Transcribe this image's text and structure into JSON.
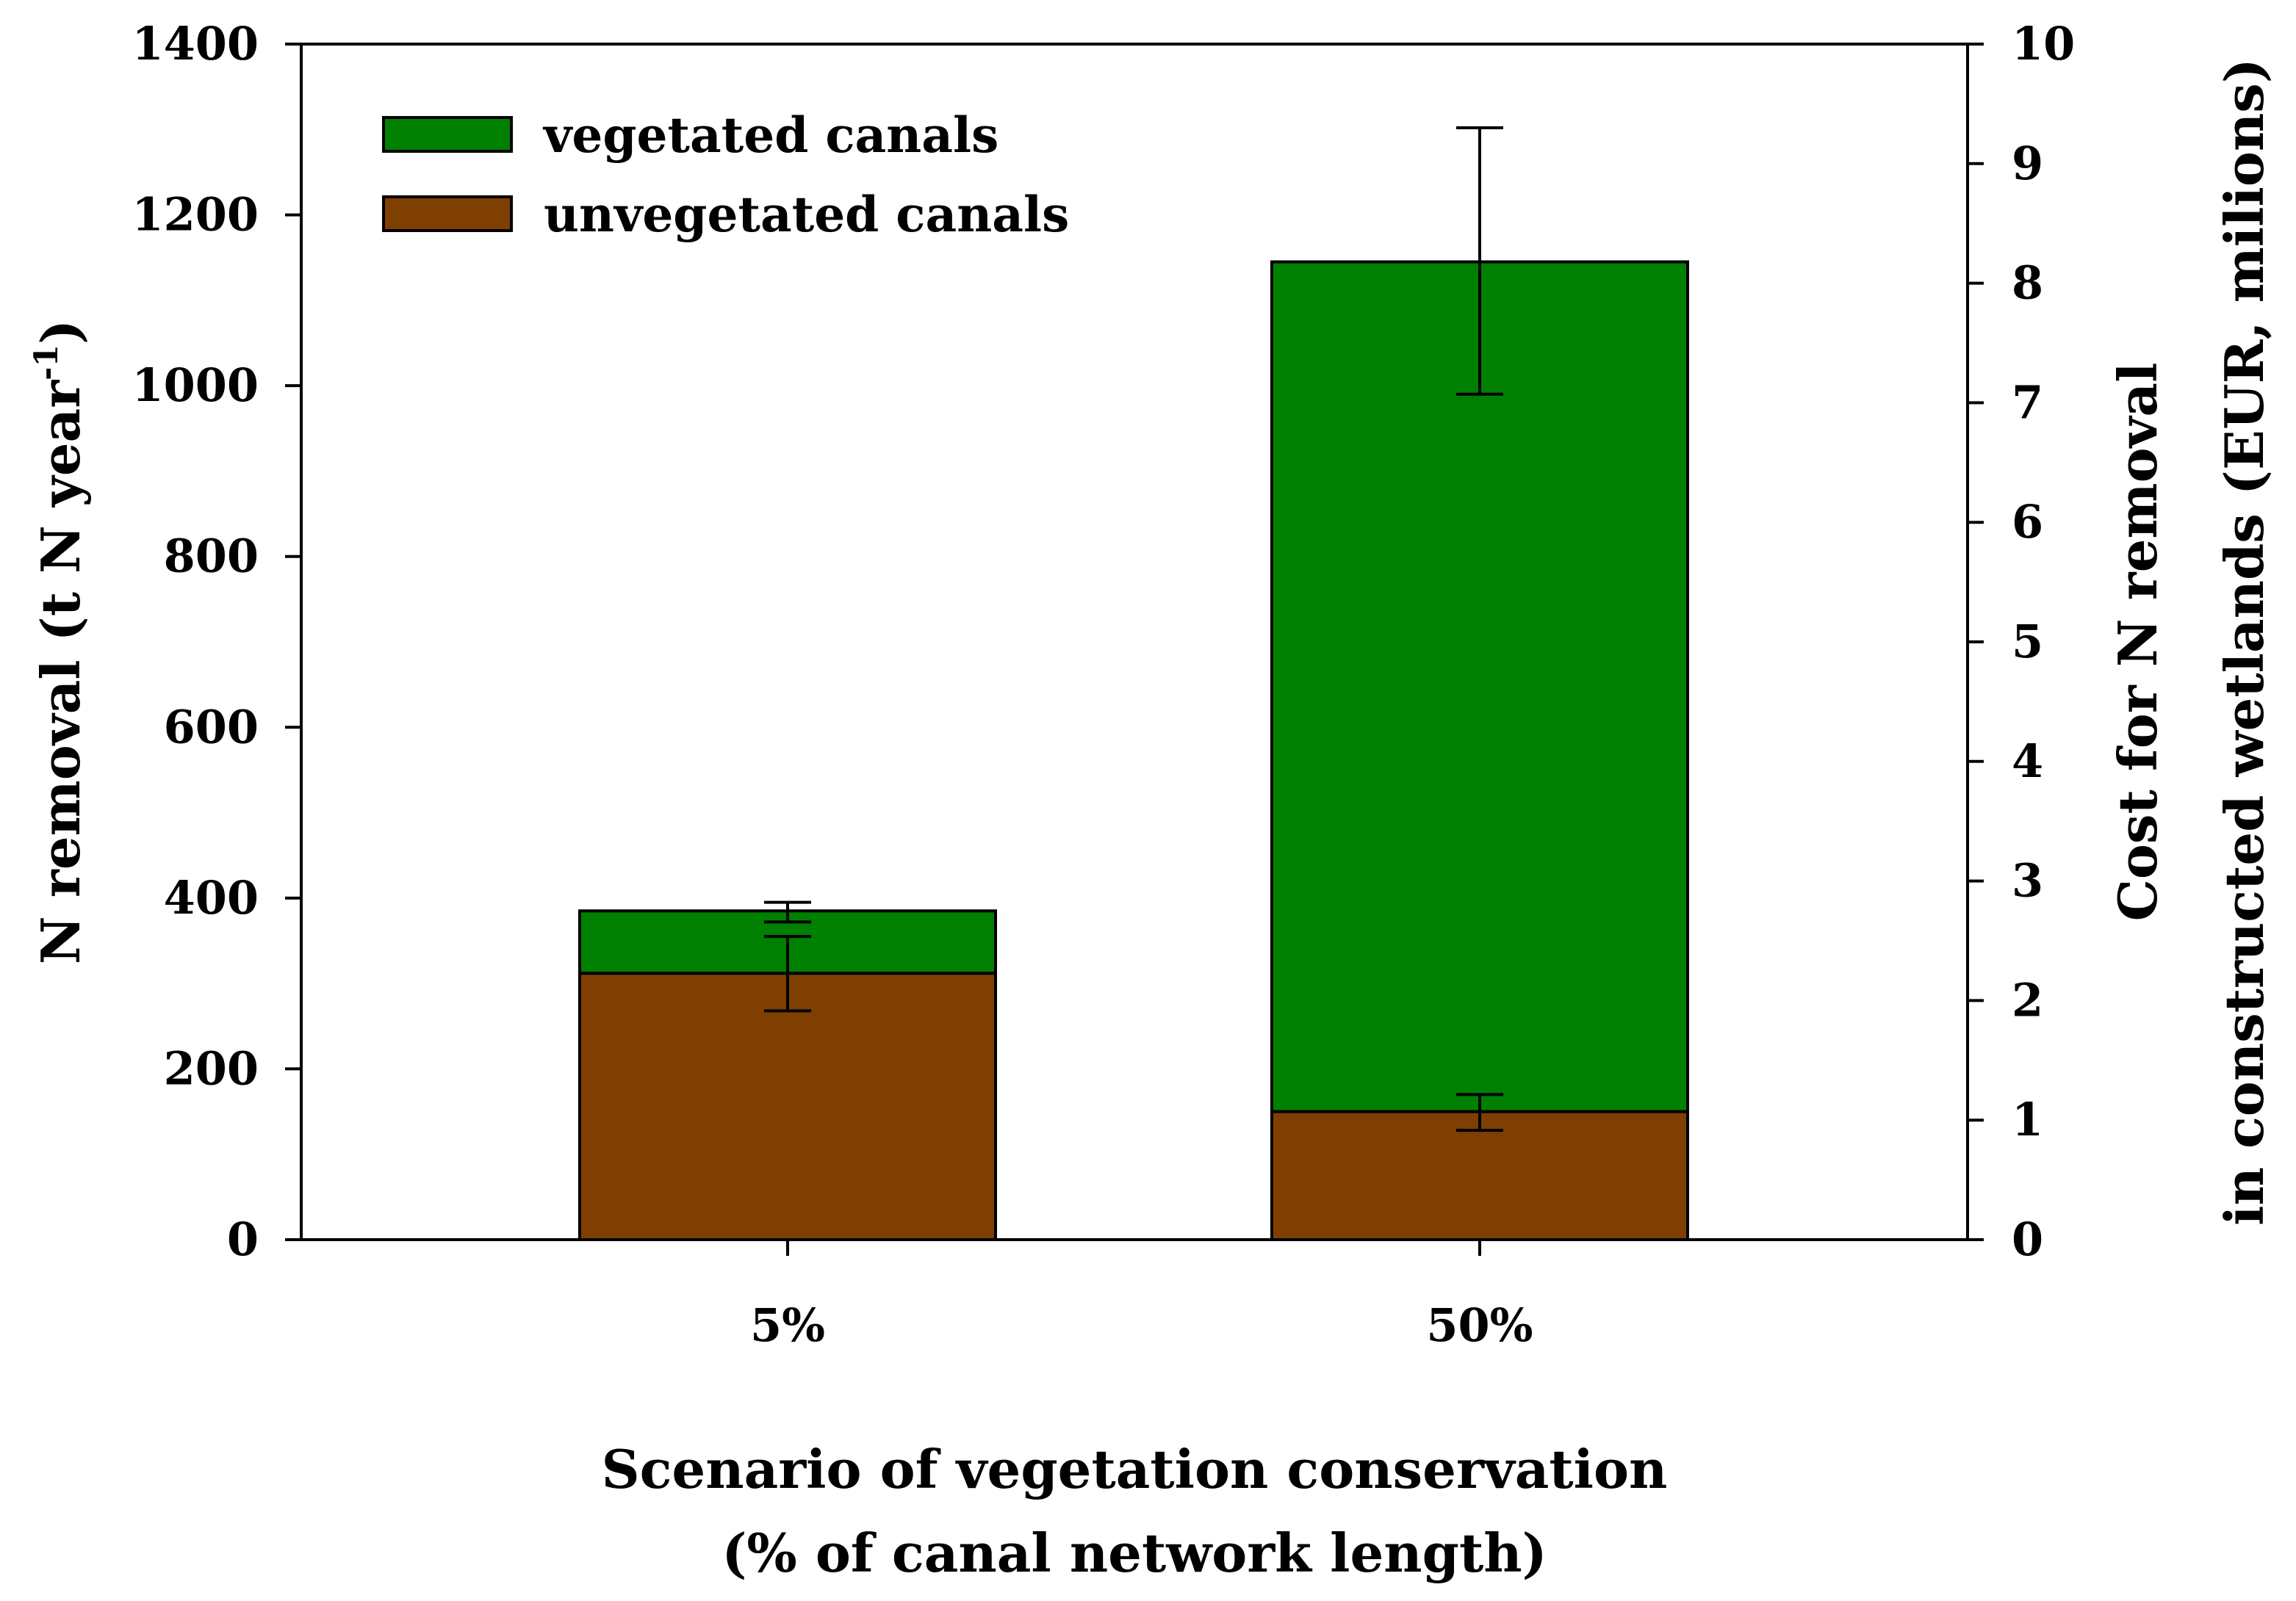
{
  "chart_data": {
    "type": "bar",
    "stacked": true,
    "categories": [
      "5%",
      "50%"
    ],
    "series": [
      {
        "name": "unvegetated canals",
        "color": "#7f3f00",
        "values": [
          312,
          150
        ],
        "error_low": [
          268,
          128
        ],
        "error_high": [
          355,
          170
        ]
      },
      {
        "name": "vegetated canals",
        "color": "#008000",
        "values": [
          73,
          995
        ],
        "error_low": [
          372,
          990
        ],
        "error_high": [
          395,
          1302
        ]
      }
    ],
    "xlabel_line1": "Scenario of vegetation conservation",
    "xlabel_line2": "(% of canal network length)",
    "ylabel_main": "N removal (t N year",
    "ylabel_sup": "-1",
    "ylabel_end": ")",
    "y2label_line1": "Cost for N removal",
    "y2label_line2": "in constructed wetlands (EUR, milions)",
    "ylim": [
      0,
      1400
    ],
    "yticks": [
      0,
      200,
      400,
      600,
      800,
      1000,
      1200,
      1400
    ],
    "y2lim": [
      0,
      10
    ],
    "y2ticks": [
      0,
      1,
      2,
      3,
      4,
      5,
      6,
      7,
      8,
      9,
      10
    ],
    "legend": {
      "position": "top-left",
      "entries": [
        {
          "label": "vegetated canals",
          "color": "#008000"
        },
        {
          "label": "unvegetated canals",
          "color": "#7f3f00"
        }
      ]
    },
    "grid": false
  }
}
